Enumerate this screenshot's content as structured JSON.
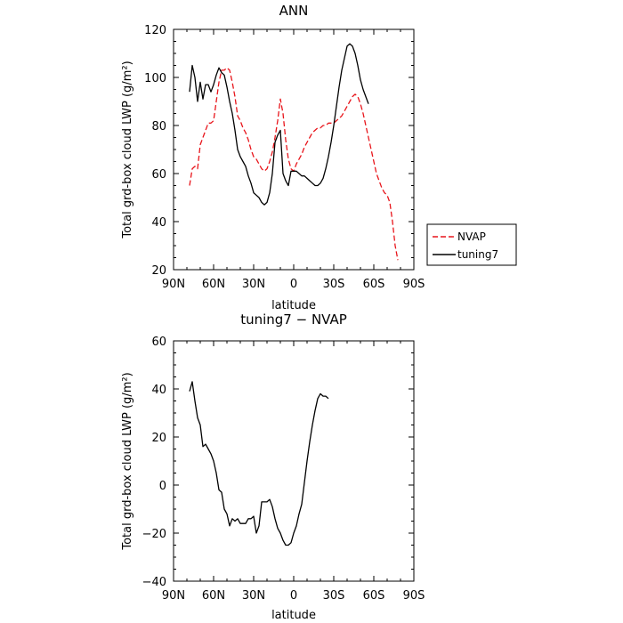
{
  "chart_data": [
    {
      "type": "line",
      "title": "ANN",
      "xlabel": "latitude",
      "ylabel": "Total grd-box cloud LWP (g/m²)",
      "xlim": [
        90,
        -90
      ],
      "ylim": [
        20,
        120
      ],
      "x_ticks": [
        90,
        60,
        30,
        0,
        -30,
        -60,
        -90
      ],
      "x_tick_labels": [
        "90N",
        "60N",
        "30N",
        "0",
        "30S",
        "60S",
        "90S"
      ],
      "y_ticks": [
        20,
        40,
        60,
        80,
        100,
        120
      ],
      "y_tick_labels": [
        "20",
        "40",
        "60",
        "80",
        "100",
        "120"
      ],
      "grid": false,
      "legend_position": "right, outside plot",
      "series": [
        {
          "name": "NVAP",
          "color": "#e8151b",
          "dashed": true,
          "points": [
            [
              78,
              55
            ],
            [
              76,
              62
            ],
            [
              74,
              63
            ],
            [
              72,
              62
            ],
            [
              70,
              72
            ],
            [
              68,
              75
            ],
            [
              66,
              78
            ],
            [
              64,
              81
            ],
            [
              62,
              81
            ],
            [
              60,
              82
            ],
            [
              58,
              90
            ],
            [
              56,
              98
            ],
            [
              54,
              103
            ],
            [
              52,
              103
            ],
            [
              50,
              104
            ],
            [
              48,
              103
            ],
            [
              46,
              98
            ],
            [
              44,
              92
            ],
            [
              42,
              84
            ],
            [
              40,
              82
            ],
            [
              38,
              79
            ],
            [
              36,
              77
            ],
            [
              34,
              74
            ],
            [
              32,
              70
            ],
            [
              30,
              67
            ],
            [
              28,
              66
            ],
            [
              26,
              64
            ],
            [
              24,
              62
            ],
            [
              22,
              61
            ],
            [
              20,
              62
            ],
            [
              18,
              65
            ],
            [
              16,
              69
            ],
            [
              14,
              75
            ],
            [
              12,
              82
            ],
            [
              10,
              91
            ],
            [
              8,
              85
            ],
            [
              6,
              74
            ],
            [
              4,
              66
            ],
            [
              2,
              62
            ],
            [
              0,
              61
            ],
            [
              -2,
              64
            ],
            [
              -4,
              66
            ],
            [
              -6,
              68
            ],
            [
              -8,
              71
            ],
            [
              -10,
              73
            ],
            [
              -12,
              75
            ],
            [
              -14,
              77
            ],
            [
              -16,
              78
            ],
            [
              -18,
              79
            ],
            [
              -20,
              79
            ],
            [
              -22,
              80
            ],
            [
              -24,
              80
            ],
            [
              -26,
              81
            ],
            [
              -28,
              81
            ],
            [
              -30,
              81
            ],
            [
              -32,
              82
            ],
            [
              -34,
              83
            ],
            [
              -36,
              84
            ],
            [
              -38,
              86
            ],
            [
              -40,
              88
            ],
            [
              -42,
              90
            ],
            [
              -44,
              92
            ],
            [
              -46,
              93
            ],
            [
              -48,
              92
            ],
            [
              -50,
              89
            ],
            [
              -52,
              85
            ],
            [
              -54,
              80
            ],
            [
              -56,
              75
            ],
            [
              -58,
              70
            ],
            [
              -60,
              65
            ],
            [
              -62,
              60
            ],
            [
              -64,
              57
            ],
            [
              -66,
              54
            ],
            [
              -68,
              52
            ],
            [
              -70,
              51
            ],
            [
              -72,
              48
            ],
            [
              -74,
              40
            ],
            [
              -76,
              30
            ],
            [
              -78,
              24
            ]
          ]
        },
        {
          "name": "tuning7",
          "color": "#000000",
          "dashed": false,
          "points": [
            [
              78,
              94
            ],
            [
              76,
              105
            ],
            [
              74,
              100
            ],
            [
              72,
              90
            ],
            [
              70,
              98
            ],
            [
              68,
              91
            ],
            [
              66,
              97
            ],
            [
              64,
              97
            ],
            [
              62,
              94
            ],
            [
              60,
              97
            ],
            [
              58,
              101
            ],
            [
              56,
              104
            ],
            [
              54,
              102
            ],
            [
              52,
              101
            ],
            [
              50,
              96
            ],
            [
              48,
              90
            ],
            [
              46,
              85
            ],
            [
              44,
              78
            ],
            [
              42,
              70
            ],
            [
              40,
              67
            ],
            [
              38,
              65
            ],
            [
              36,
              63
            ],
            [
              34,
              59
            ],
            [
              32,
              56
            ],
            [
              30,
              52
            ],
            [
              28,
              51
            ],
            [
              26,
              50
            ],
            [
              24,
              48
            ],
            [
              22,
              47
            ],
            [
              20,
              48
            ],
            [
              18,
              52
            ],
            [
              16,
              60
            ],
            [
              14,
              73
            ],
            [
              12,
              76
            ],
            [
              10,
              78
            ],
            [
              8,
              60
            ],
            [
              6,
              57
            ],
            [
              4,
              55
            ],
            [
              2,
              61
            ],
            [
              0,
              61
            ],
            [
              -2,
              61
            ],
            [
              -4,
              60
            ],
            [
              -6,
              59
            ],
            [
              -8,
              59
            ],
            [
              -10,
              58
            ],
            [
              -12,
              57
            ],
            [
              -14,
              56
            ],
            [
              -16,
              55
            ],
            [
              -18,
              55
            ],
            [
              -20,
              56
            ],
            [
              -22,
              58
            ],
            [
              -24,
              62
            ],
            [
              -26,
              67
            ],
            [
              -28,
              73
            ],
            [
              -30,
              80
            ],
            [
              -32,
              88
            ],
            [
              -34,
              96
            ],
            [
              -36,
              103
            ],
            [
              -38,
              108
            ],
            [
              -40,
              113
            ],
            [
              -42,
              114
            ],
            [
              -44,
              113
            ],
            [
              -46,
              110
            ],
            [
              -48,
              105
            ],
            [
              -50,
              99
            ],
            [
              -52,
              95
            ],
            [
              -54,
              92
            ],
            [
              -56,
              89
            ]
          ]
        }
      ]
    },
    {
      "type": "line",
      "title": "tuning7 − NVAP",
      "xlabel": "latitude",
      "ylabel": "Total grd-box cloud LWP (g/m²)",
      "xlim": [
        90,
        -90
      ],
      "ylim": [
        -40,
        60
      ],
      "x_ticks": [
        90,
        60,
        30,
        0,
        -30,
        -60,
        -90
      ],
      "x_tick_labels": [
        "90N",
        "60N",
        "30N",
        "0",
        "30S",
        "60S",
        "90S"
      ],
      "y_ticks": [
        -40,
        -20,
        0,
        20,
        40,
        60
      ],
      "y_tick_labels": [
        "−40",
        "−20",
        "0",
        "20",
        "40",
        "60"
      ],
      "grid": false,
      "series": [
        {
          "color": "#000000",
          "dashed": false,
          "points": [
            [
              78,
              39
            ],
            [
              76,
              43
            ],
            [
              74,
              35
            ],
            [
              72,
              28
            ],
            [
              70,
              25
            ],
            [
              68,
              16
            ],
            [
              66,
              17
            ],
            [
              64,
              15
            ],
            [
              62,
              13
            ],
            [
              60,
              10
            ],
            [
              58,
              5
            ],
            [
              56,
              -2
            ],
            [
              54,
              -3
            ],
            [
              52,
              -10
            ],
            [
              50,
              -12
            ],
            [
              48,
              -17
            ],
            [
              46,
              -14
            ],
            [
              44,
              -15
            ],
            [
              42,
              -14
            ],
            [
              40,
              -16
            ],
            [
              38,
              -16
            ],
            [
              36,
              -16
            ],
            [
              34,
              -14
            ],
            [
              32,
              -14
            ],
            [
              30,
              -13
            ],
            [
              28,
              -20
            ],
            [
              26,
              -17
            ],
            [
              24,
              -7
            ],
            [
              22,
              -7
            ],
            [
              20,
              -7
            ],
            [
              18,
              -6
            ],
            [
              16,
              -9
            ],
            [
              14,
              -14
            ],
            [
              12,
              -18
            ],
            [
              10,
              -20
            ],
            [
              8,
              -23
            ],
            [
              6,
              -25
            ],
            [
              4,
              -25
            ],
            [
              2,
              -24
            ],
            [
              0,
              -20
            ],
            [
              -2,
              -17
            ],
            [
              -4,
              -12
            ],
            [
              -6,
              -8
            ],
            [
              -8,
              1
            ],
            [
              -10,
              10
            ],
            [
              -12,
              18
            ],
            [
              -14,
              25
            ],
            [
              -16,
              31
            ],
            [
              -18,
              36
            ],
            [
              -20,
              38
            ],
            [
              -22,
              37
            ],
            [
              -24,
              37
            ],
            [
              -26,
              36
            ]
          ]
        }
      ]
    }
  ]
}
